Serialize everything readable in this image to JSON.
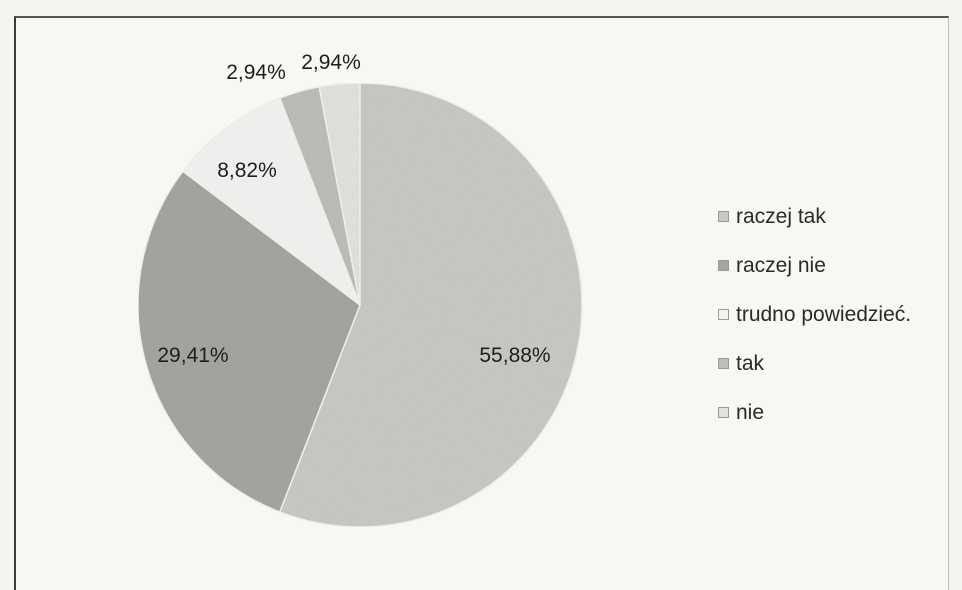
{
  "chart_data": {
    "type": "pie",
    "categories": [
      "raczej tak",
      "raczej nie",
      "trudno powiedzieć.",
      "tak",
      "nie"
    ],
    "values": [
      55.88,
      29.41,
      8.82,
      2.94,
      2.94
    ],
    "data_labels": [
      "55,88%",
      "29,41%",
      "8,82%",
      "2,94%",
      "2,94%"
    ],
    "colors": [
      "#c9c9c6",
      "#a5a5a2",
      "#f3f3f1",
      "#bdbdba",
      "#e2e2df"
    ],
    "legend_position": "right",
    "title": ""
  }
}
